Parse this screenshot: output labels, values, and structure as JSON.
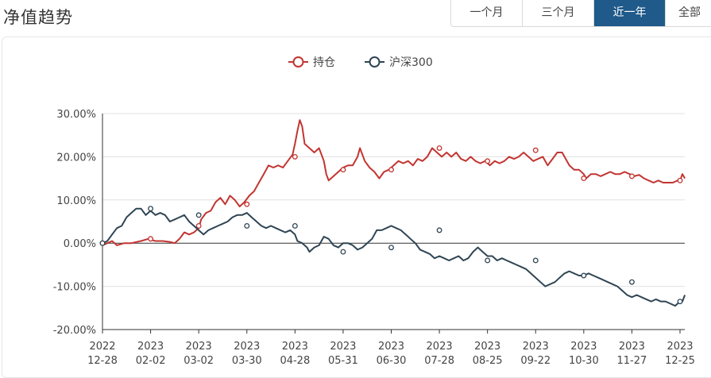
{
  "header": {
    "title": "净值趋势",
    "tabs": [
      {
        "label": "一个月",
        "active": false
      },
      {
        "label": "三个月",
        "active": false
      },
      {
        "label": "近一年",
        "active": true
      },
      {
        "label": "全部",
        "active": false
      }
    ]
  },
  "colors": {
    "holding": "#c23531",
    "index": "#2f4554",
    "active_tab": "#1f5a8a"
  },
  "chart_data": {
    "type": "line",
    "title": "",
    "xlabel": "",
    "ylabel": "",
    "ylim": [
      -20,
      30
    ],
    "yticks": [
      "30.00%",
      "20.00%",
      "10.00%",
      "0.00%",
      "-10.00%",
      "-20.00%"
    ],
    "xticks": [
      {
        "year": "2022",
        "date": "12-28"
      },
      {
        "year": "2023",
        "date": "02-02"
      },
      {
        "year": "2023",
        "date": "03-02"
      },
      {
        "year": "2023",
        "date": "03-30"
      },
      {
        "year": "2023",
        "date": "04-28"
      },
      {
        "year": "2023",
        "date": "05-31"
      },
      {
        "year": "2023",
        "date": "06-30"
      },
      {
        "year": "2023",
        "date": "07-28"
      },
      {
        "year": "2023",
        "date": "08-25"
      },
      {
        "year": "2023",
        "date": "09-22"
      },
      {
        "year": "2023",
        "date": "10-30"
      },
      {
        "year": "2023",
        "date": "11-27"
      },
      {
        "year": "2023",
        "date": "12-25"
      }
    ],
    "legend_position": "top-center",
    "grid": true,
    "series": [
      {
        "name": "持仓",
        "values": [
          [
            0,
            -0.5
          ],
          [
            0.1,
            0
          ],
          [
            0.2,
            0.5
          ],
          [
            0.3,
            -0.5
          ],
          [
            0.45,
            0
          ],
          [
            0.6,
            0
          ],
          [
            0.8,
            0.5
          ],
          [
            0.95,
            1
          ],
          [
            1.1,
            0.5
          ],
          [
            1.25,
            0.5
          ],
          [
            1.4,
            0.3
          ],
          [
            1.5,
            0
          ],
          [
            1.6,
            1
          ],
          [
            1.7,
            2.5
          ],
          [
            1.8,
            2
          ],
          [
            1.9,
            2.5
          ],
          [
            2.0,
            3.5
          ],
          [
            2.05,
            5.5
          ],
          [
            2.15,
            7
          ],
          [
            2.25,
            7.5
          ],
          [
            2.35,
            9.5
          ],
          [
            2.45,
            10.5
          ],
          [
            2.55,
            9
          ],
          [
            2.65,
            11
          ],
          [
            2.75,
            10
          ],
          [
            2.85,
            8.5
          ],
          [
            2.95,
            9.5
          ],
          [
            3.05,
            11
          ],
          [
            3.15,
            12
          ],
          [
            3.25,
            14
          ],
          [
            3.35,
            16
          ],
          [
            3.45,
            18
          ],
          [
            3.55,
            17.5
          ],
          [
            3.65,
            18
          ],
          [
            3.75,
            17.5
          ],
          [
            3.85,
            19
          ],
          [
            3.95,
            20.5
          ],
          [
            4.0,
            23
          ],
          [
            4.05,
            26
          ],
          [
            4.1,
            28.5
          ],
          [
            4.15,
            27
          ],
          [
            4.2,
            23
          ],
          [
            4.3,
            22
          ],
          [
            4.4,
            21
          ],
          [
            4.5,
            22
          ],
          [
            4.55,
            20.5
          ],
          [
            4.6,
            19
          ],
          [
            4.65,
            16
          ],
          [
            4.7,
            14.5
          ],
          [
            4.8,
            15.5
          ],
          [
            4.9,
            16.5
          ],
          [
            5.0,
            17.5
          ],
          [
            5.1,
            18
          ],
          [
            5.2,
            18
          ],
          [
            5.3,
            20
          ],
          [
            5.35,
            22
          ],
          [
            5.45,
            19
          ],
          [
            5.55,
            17.5
          ],
          [
            5.65,
            16.5
          ],
          [
            5.75,
            15
          ],
          [
            5.85,
            16.5
          ],
          [
            5.95,
            17
          ],
          [
            6.05,
            18
          ],
          [
            6.15,
            19
          ],
          [
            6.25,
            18.5
          ],
          [
            6.35,
            19
          ],
          [
            6.45,
            18
          ],
          [
            6.55,
            19.5
          ],
          [
            6.65,
            19
          ],
          [
            6.75,
            20
          ],
          [
            6.85,
            22
          ],
          [
            6.95,
            21
          ],
          [
            7.05,
            20
          ],
          [
            7.15,
            21
          ],
          [
            7.25,
            20
          ],
          [
            7.35,
            21
          ],
          [
            7.45,
            19.5
          ],
          [
            7.55,
            19
          ],
          [
            7.65,
            20
          ],
          [
            7.75,
            19
          ],
          [
            7.85,
            18.5
          ],
          [
            7.95,
            19
          ],
          [
            8.05,
            18
          ],
          [
            8.15,
            19
          ],
          [
            8.25,
            18.5
          ],
          [
            8.35,
            19
          ],
          [
            8.45,
            20
          ],
          [
            8.55,
            19.5
          ],
          [
            8.65,
            20
          ],
          [
            8.75,
            21
          ],
          [
            8.85,
            20
          ],
          [
            8.95,
            19
          ],
          [
            9.05,
            19.5
          ],
          [
            9.15,
            20
          ],
          [
            9.25,
            18
          ],
          [
            9.35,
            19.5
          ],
          [
            9.45,
            21
          ],
          [
            9.55,
            21
          ],
          [
            9.6,
            20
          ],
          [
            9.7,
            18
          ],
          [
            9.8,
            17
          ],
          [
            9.9,
            17
          ],
          [
            10.0,
            16
          ],
          [
            10.05,
            15
          ],
          [
            10.15,
            16
          ],
          [
            10.25,
            16
          ],
          [
            10.35,
            15.5
          ],
          [
            10.45,
            16
          ],
          [
            10.55,
            16.5
          ],
          [
            10.65,
            16
          ],
          [
            10.75,
            16
          ],
          [
            10.85,
            16.5
          ],
          [
            10.95,
            16
          ],
          [
            11.05,
            15.5
          ],
          [
            11.15,
            15.8
          ],
          [
            11.25,
            15
          ],
          [
            11.35,
            14.5
          ],
          [
            11.45,
            14
          ],
          [
            11.55,
            14.5
          ],
          [
            11.65,
            14
          ],
          [
            11.75,
            14
          ],
          [
            11.85,
            14
          ],
          [
            11.95,
            14.5
          ],
          [
            12.0,
            14.5
          ],
          [
            12.05,
            16
          ],
          [
            12.1,
            15
          ]
        ]
      },
      {
        "name": "沪深300",
        "values": [
          [
            0,
            0
          ],
          [
            0.1,
            0.5
          ],
          [
            0.2,
            2
          ],
          [
            0.3,
            3.5
          ],
          [
            0.4,
            4
          ],
          [
            0.5,
            6
          ],
          [
            0.6,
            7
          ],
          [
            0.7,
            8
          ],
          [
            0.8,
            8
          ],
          [
            0.9,
            6.5
          ],
          [
            1.0,
            7.5
          ],
          [
            1.1,
            6.5
          ],
          [
            1.2,
            7
          ],
          [
            1.3,
            6.5
          ],
          [
            1.4,
            5
          ],
          [
            1.5,
            5.5
          ],
          [
            1.6,
            6
          ],
          [
            1.7,
            6.5
          ],
          [
            1.8,
            5
          ],
          [
            1.9,
            4
          ],
          [
            2.0,
            3
          ],
          [
            2.1,
            2
          ],
          [
            2.2,
            3
          ],
          [
            2.3,
            3.5
          ],
          [
            2.4,
            4
          ],
          [
            2.5,
            4.5
          ],
          [
            2.6,
            5
          ],
          [
            2.7,
            6
          ],
          [
            2.8,
            6.5
          ],
          [
            2.9,
            6.5
          ],
          [
            3.0,
            7
          ],
          [
            3.1,
            6
          ],
          [
            3.2,
            5
          ],
          [
            3.3,
            4
          ],
          [
            3.4,
            3.5
          ],
          [
            3.5,
            4
          ],
          [
            3.6,
            3.5
          ],
          [
            3.7,
            3
          ],
          [
            3.8,
            2.5
          ],
          [
            3.9,
            3
          ],
          [
            4.0,
            2
          ],
          [
            4.05,
            0.5
          ],
          [
            4.15,
            0
          ],
          [
            4.25,
            -1
          ],
          [
            4.3,
            -2
          ],
          [
            4.4,
            -1
          ],
          [
            4.5,
            -0.5
          ],
          [
            4.6,
            1.5
          ],
          [
            4.7,
            1
          ],
          [
            4.8,
            -0.5
          ],
          [
            4.9,
            -1
          ],
          [
            5.0,
            0
          ],
          [
            5.1,
            0
          ],
          [
            5.2,
            -0.5
          ],
          [
            5.3,
            -1.5
          ],
          [
            5.4,
            -1
          ],
          [
            5.5,
            0
          ],
          [
            5.6,
            1
          ],
          [
            5.7,
            3
          ],
          [
            5.8,
            3
          ],
          [
            5.9,
            3.5
          ],
          [
            6.0,
            4
          ],
          [
            6.1,
            3.5
          ],
          [
            6.2,
            3
          ],
          [
            6.3,
            2
          ],
          [
            6.4,
            1
          ],
          [
            6.5,
            0
          ],
          [
            6.6,
            -1.5
          ],
          [
            6.7,
            -2
          ],
          [
            6.8,
            -2.5
          ],
          [
            6.9,
            -3.5
          ],
          [
            7.0,
            -3
          ],
          [
            7.1,
            -3.5
          ],
          [
            7.2,
            -4
          ],
          [
            7.3,
            -3.5
          ],
          [
            7.4,
            -3
          ],
          [
            7.5,
            -4
          ],
          [
            7.6,
            -3.5
          ],
          [
            7.7,
            -2
          ],
          [
            7.8,
            -1
          ],
          [
            7.9,
            -2
          ],
          [
            8.0,
            -3
          ],
          [
            8.1,
            -3
          ],
          [
            8.2,
            -4
          ],
          [
            8.3,
            -3.5
          ],
          [
            8.4,
            -4
          ],
          [
            8.5,
            -4.5
          ],
          [
            8.6,
            -5
          ],
          [
            8.7,
            -5.5
          ],
          [
            8.8,
            -6
          ],
          [
            8.9,
            -7
          ],
          [
            9.0,
            -8
          ],
          [
            9.1,
            -9
          ],
          [
            9.2,
            -10
          ],
          [
            9.3,
            -9.5
          ],
          [
            9.4,
            -9
          ],
          [
            9.5,
            -8
          ],
          [
            9.6,
            -7
          ],
          [
            9.7,
            -6.5
          ],
          [
            9.8,
            -7
          ],
          [
            9.9,
            -7.5
          ],
          [
            10.0,
            -7.5
          ],
          [
            10.1,
            -7
          ],
          [
            10.2,
            -7.5
          ],
          [
            10.3,
            -8
          ],
          [
            10.4,
            -8.5
          ],
          [
            10.5,
            -9
          ],
          [
            10.6,
            -9.5
          ],
          [
            10.7,
            -10
          ],
          [
            10.8,
            -11
          ],
          [
            10.9,
            -12
          ],
          [
            11.0,
            -12.5
          ],
          [
            11.1,
            -12
          ],
          [
            11.2,
            -12.5
          ],
          [
            11.3,
            -13
          ],
          [
            11.4,
            -13.5
          ],
          [
            11.5,
            -13
          ],
          [
            11.6,
            -13.5
          ],
          [
            11.7,
            -13.5
          ],
          [
            11.8,
            -14
          ],
          [
            11.9,
            -14.5
          ],
          [
            12.0,
            -13.5
          ],
          [
            12.05,
            -13.5
          ],
          [
            12.1,
            -12
          ]
        ]
      }
    ],
    "markers": {
      "持仓": [
        [
          0,
          0
        ],
        [
          1.0,
          1
        ],
        [
          2.0,
          4
        ],
        [
          3.0,
          9
        ],
        [
          4.0,
          20
        ],
        [
          5.0,
          17
        ],
        [
          6.0,
          17
        ],
        [
          7.0,
          22
        ],
        [
          8.0,
          19
        ],
        [
          9.0,
          21.5
        ],
        [
          10.0,
          15
        ],
        [
          11.0,
          15.5
        ],
        [
          12.0,
          14.5
        ]
      ],
      "沪深300": [
        [
          0,
          0
        ],
        [
          1.0,
          8
        ],
        [
          2.0,
          6.5
        ],
        [
          3.0,
          4
        ],
        [
          4.0,
          4
        ],
        [
          5.0,
          -2
        ],
        [
          6.0,
          -1
        ],
        [
          7.0,
          3
        ],
        [
          8.0,
          -4
        ],
        [
          9.0,
          -4
        ],
        [
          10.0,
          -7.5
        ],
        [
          11.0,
          -9
        ],
        [
          12.0,
          -13.5
        ]
      ]
    }
  }
}
